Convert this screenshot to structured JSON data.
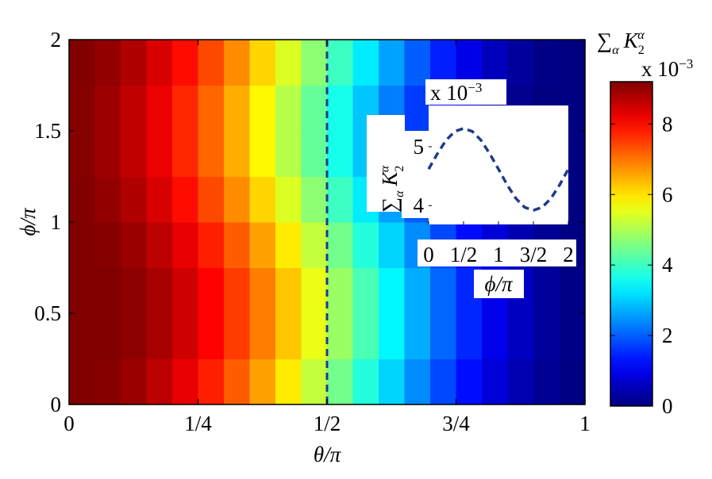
{
  "chart_data": [
    {
      "type": "heatmap",
      "x_label": "θ/π",
      "y_label": "ϕ/π",
      "x": [
        0.025,
        0.075,
        0.125,
        0.175,
        0.225,
        0.275,
        0.325,
        0.375,
        0.425,
        0.475,
        0.525,
        0.575,
        0.625,
        0.675,
        0.725,
        0.775,
        0.825,
        0.875,
        0.925,
        0.975
      ],
      "y": [
        0.125,
        0.375,
        0.625,
        0.875,
        1.125,
        1.375,
        1.625,
        1.875
      ],
      "values": [
        [
          9.21,
          9.13,
          8.95,
          8.65,
          8.26,
          7.78,
          7.22,
          6.59,
          5.92,
          5.21,
          4.49,
          3.77,
          3.07,
          2.41,
          1.8,
          1.26,
          0.81,
          0.45,
          0.19,
          0.03
        ],
        [
          9.23,
          9.21,
          9.08,
          8.84,
          8.49,
          8.04,
          7.52,
          6.92,
          6.26,
          5.56,
          4.84,
          4.11,
          3.4,
          2.71,
          2.07,
          1.49,
          0.99,
          0.58,
          0.27,
          0.06
        ],
        [
          9.23,
          9.21,
          9.08,
          8.84,
          8.49,
          8.04,
          7.52,
          6.92,
          6.26,
          5.56,
          4.84,
          4.11,
          3.4,
          2.71,
          2.07,
          1.49,
          0.99,
          0.58,
          0.27,
          0.06
        ],
        [
          9.21,
          9.13,
          8.95,
          8.65,
          8.26,
          7.78,
          7.22,
          6.59,
          5.92,
          5.21,
          4.49,
          3.77,
          3.07,
          2.41,
          1.8,
          1.26,
          0.81,
          0.45,
          0.19,
          0.03
        ],
        [
          9.17,
          9.02,
          8.76,
          8.39,
          7.94,
          7.4,
          6.79,
          6.13,
          5.43,
          4.71,
          3.99,
          3.28,
          2.61,
          1.99,
          1.42,
          0.94,
          0.55,
          0.26,
          0.07,
          0
        ],
        [
          9.14,
          8.93,
          8.62,
          8.21,
          7.71,
          7.13,
          6.49,
          5.81,
          5.09,
          4.36,
          3.64,
          2.94,
          2.29,
          1.69,
          1.16,
          0.71,
          0.36,
          0.12,
          0,
          0
        ],
        [
          9.14,
          8.93,
          8.62,
          8.21,
          7.71,
          7.13,
          6.49,
          5.81,
          5.09,
          4.36,
          3.64,
          2.94,
          2.29,
          1.69,
          1.16,
          0.71,
          0.36,
          0.12,
          0,
          0
        ],
        [
          9.17,
          9.02,
          8.76,
          8.39,
          7.94,
          7.4,
          6.79,
          6.13,
          5.43,
          4.71,
          3.99,
          3.28,
          2.61,
          1.99,
          1.42,
          0.94,
          0.55,
          0.26,
          0.07,
          0
        ]
      ],
      "xlim": [
        0,
        1
      ],
      "ylim": [
        0,
        2
      ],
      "xticks": [
        0,
        {
          "value": 0.25,
          "label": "1/4"
        },
        {
          "value": 0.5,
          "label": "1/2"
        },
        {
          "value": 0.75,
          "label": "3/4"
        },
        1
      ],
      "yticks": [
        0,
        0.5,
        1,
        1.5,
        2
      ],
      "colormap": "jet",
      "marker_x": 0.5,
      "marker_color": "#1f3a8a",
      "colorbar": {
        "clim": [
          0,
          9.2
        ],
        "ticks": [
          0,
          2,
          4,
          6,
          8
        ],
        "label": {
          "sum": "∑",
          "sum_sub": "α",
          "symbol": "K",
          "sub": "2",
          "sup": "α"
        },
        "scale_label": "x 10",
        "scale_exponent": "−3"
      }
    },
    {
      "type": "line",
      "x_label": "ϕ/π",
      "y_label": {
        "sum": "∑",
        "sum_sub": "α",
        "symbol": "K",
        "sub": "2",
        "sup": "α"
      },
      "scale_label": "x 10",
      "scale_exponent": "−3",
      "x": [
        0,
        0.125,
        0.25,
        0.375,
        0.5,
        0.625,
        0.75,
        0.875,
        1,
        1.125,
        1.25,
        1.375,
        1.5,
        1.625,
        1.75,
        1.875,
        2
      ],
      "values": [
        4.62,
        4.88,
        5.11,
        5.26,
        5.31,
        5.26,
        5.11,
        4.88,
        4.62,
        4.35,
        4.12,
        3.97,
        3.92,
        3.97,
        4.12,
        4.35,
        4.62
      ],
      "color": "#1f3a8a",
      "xlim": [
        0,
        2
      ],
      "ylim": [
        3.68,
        5.7
      ],
      "xticks": [
        0,
        {
          "value": 0.5,
          "label": "1/2"
        },
        1,
        {
          "value": 1.5,
          "label": "3/2"
        },
        2
      ],
      "yticks": [
        4,
        5
      ]
    }
  ]
}
